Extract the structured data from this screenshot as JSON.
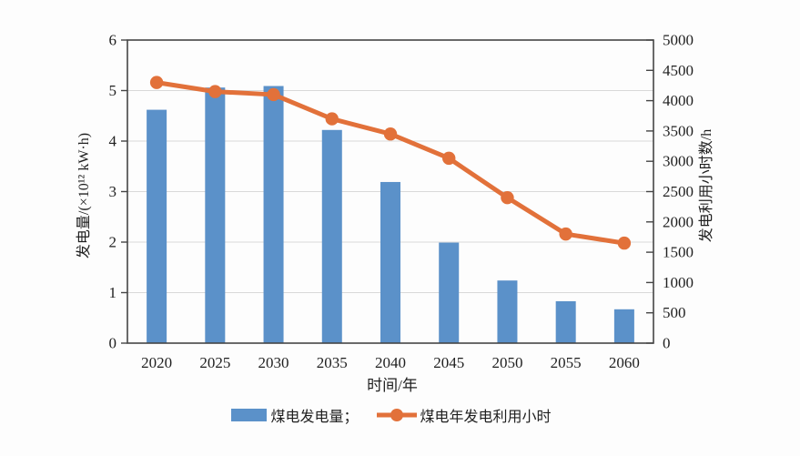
{
  "colors": {
    "bar": "#5b91c9",
    "line": "#e2713a",
    "frame": "#454545",
    "grid": "#d9d9d9",
    "text": "#1f1f1f",
    "background": "#fdfdfd"
  },
  "chart_data": {
    "type": "bar+line combo",
    "categories": [
      "2020",
      "2025",
      "2030",
      "2035",
      "2040",
      "2045",
      "2050",
      "2055",
      "2060"
    ],
    "series": [
      {
        "name": "煤电发电量",
        "type": "bar",
        "axis": "left",
        "values": [
          4.62,
          5.06,
          5.09,
          4.22,
          3.19,
          1.99,
          1.24,
          0.83,
          0.67
        ]
      },
      {
        "name": "煤电年发电利用小时",
        "type": "line",
        "axis": "right",
        "values": [
          4300,
          4150,
          4100,
          3700,
          3450,
          3050,
          2400,
          1800,
          1650
        ]
      }
    ],
    "left_axis": {
      "label": "发电量/(×10¹² kW·h)",
      "min": 0,
      "max": 6,
      "step": 1,
      "ticks": [
        "0",
        "1",
        "2",
        "3",
        "4",
        "5",
        "6"
      ]
    },
    "right_axis": {
      "label": "发电利用小时数/h",
      "min": 0,
      "max": 5000,
      "step": 500,
      "ticks": [
        "0",
        "500",
        "1000",
        "1500",
        "2000",
        "2500",
        "3000",
        "3500",
        "4000",
        "4500",
        "5000"
      ]
    },
    "x_axis": {
      "label": "时间/年"
    },
    "legend": [
      {
        "label": "煤电发电量；",
        "marker": "bar"
      },
      {
        "label": "煤电年发电利用小时",
        "marker": "line"
      }
    ],
    "grid": "horizontal",
    "legend_position": "bottom"
  }
}
